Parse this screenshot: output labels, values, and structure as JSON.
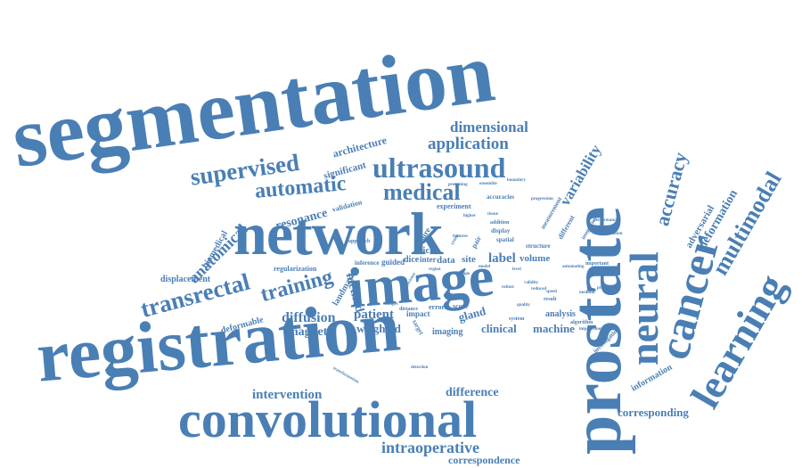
{
  "words": {
    "segmentation": "segmentation",
    "registration": "registration",
    "network": "network",
    "image": "image",
    "prostate": "prostate",
    "convolutional": "convolutional",
    "cancer": "cancer",
    "neural": "neural",
    "learning": "learning",
    "ultrasound": "ultrasound",
    "supervised": "supervised",
    "transrectal": "transrectal",
    "medical": "medical",
    "automatic": "automatic",
    "training": "training",
    "multimodal": "multimodal",
    "accuracy": "accuracy",
    "application": "application",
    "dimensional": "dimensional",
    "variability": "variability",
    "anatomical": "anatomical",
    "resonance": "resonance",
    "deformation": "deformation",
    "adversarial": "adversarial",
    "architecture": "architecture",
    "significant": "significant",
    "intervention": "intervention",
    "difference": "difference",
    "intraoperative": "intraoperative",
    "correspondence": "correspondence",
    "corresponding": "corresponding",
    "diffusion": "diffusion",
    "magnetic": "magnetic",
    "weighted": "weighted",
    "patient": "patient",
    "method": "method",
    "clinical": "clinical",
    "machine": "machine",
    "gland": "gland",
    "label": "label",
    "volume": "volume",
    "data": "data",
    "site": "site",
    "slice": "slice",
    "dice": "dice",
    "inter": "inter",
    "guided": "guided",
    "inference": "inference",
    "landmark": "landmark",
    "deformable": "deformable",
    "displacement": "displacement",
    "biomedical": "biomedical",
    "regularization": "regularization",
    "information": "information",
    "analysis": "analysis",
    "imaging": "imaging",
    "score": "score",
    "error": "error",
    "impact": "impact",
    "distance": "distance",
    "experiment": "experiment",
    "validation": "validation",
    "measure": "measure",
    "different": "different",
    "measurement": "measurement",
    "accuracies": "accuracies",
    "addition": "addition",
    "display": "display",
    "spatial": "spatial",
    "structure": "structure",
    "important": "important",
    "level": "level",
    "approach": "approach",
    "integration": "integration",
    "algorithm": "algorithm",
    "improvement": "improvement",
    "investigating": "investigating",
    "result": "result",
    "system": "system",
    "transformation": "transformation",
    "detection": "detection",
    "performance": "performance",
    "progression": "progression",
    "precision": "precision",
    "promising": "promising",
    "ensemble": "ensemble",
    "validity": "validity",
    "automating": "automating",
    "simulation": "simulation",
    "procedure": "procedure",
    "medium": "medium",
    "quality": "quality",
    "images": "images",
    "target": "target",
    "contour": "contour",
    "region": "region",
    "shape": "shape",
    "model": "model",
    "features": "features",
    "boundary": "boundary",
    "tissue": "tissue",
    "higher": "higher",
    "reduced": "reduced",
    "speed": "speed",
    "robust": "robust",
    "cross": "cross",
    "pair": "pair"
  }
}
